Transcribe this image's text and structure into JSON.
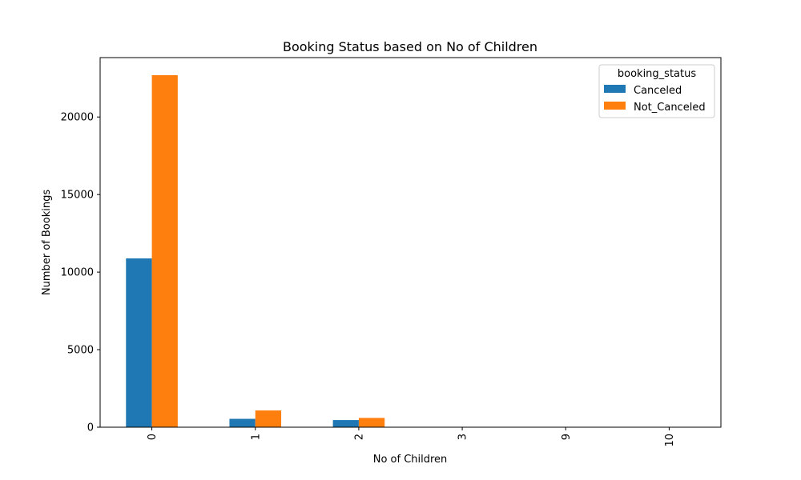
{
  "chart_data": {
    "type": "bar",
    "title": "Booking Status based on No of Children",
    "xlabel": "No of Children",
    "ylabel": "Number of Bookings",
    "categories": [
      "0",
      "1",
      "2",
      "3",
      "9",
      "10"
    ],
    "series": [
      {
        "name": "Canceled",
        "color": "#1f77b4",
        "values": [
          10882,
          540,
          460,
          19,
          1,
          1
        ]
      },
      {
        "name": "Not_Canceled",
        "color": "#ff7f0e",
        "values": [
          22695,
          1080,
          598,
          5,
          1,
          2
        ]
      }
    ],
    "ylim": [
      0,
      23829
    ],
    "yticks": [
      0,
      5000,
      10000,
      15000,
      20000
    ],
    "legend": {
      "title": "booking_status",
      "placement": "top-right"
    },
    "grid": false
  }
}
